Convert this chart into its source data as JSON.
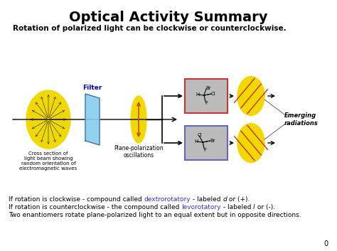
{
  "title": "Optical Activity Summary",
  "subtitle": "Rotation of polarized light can be clockwise or counterclockwise.",
  "bg_color": "#ffffff",
  "title_fontsize": 14,
  "subtitle_fontsize": 7.5,
  "bottom_lines": [
    {
      "parts": [
        {
          "text": "If rotation is clockwise - compound called ",
          "color": "#000000",
          "italic": false,
          "bold": false
        },
        {
          "text": "dextrorotatory",
          "color": "#3333cc",
          "italic": false,
          "bold": false
        },
        {
          "text": " - labeled ",
          "color": "#000000",
          "italic": false,
          "bold": false
        },
        {
          "text": "d",
          "color": "#000000",
          "italic": true,
          "bold": false
        },
        {
          "text": " or (+).",
          "color": "#000000",
          "italic": false,
          "bold": false
        }
      ]
    },
    {
      "parts": [
        {
          "text": "If rotation is counterclockwise - the compound called ",
          "color": "#000000",
          "italic": false,
          "bold": false
        },
        {
          "text": "levorotatory",
          "color": "#3333cc",
          "italic": false,
          "bold": false
        },
        {
          "text": " - labeled ",
          "color": "#000000",
          "italic": false,
          "bold": false
        },
        {
          "text": "l",
          "color": "#000000",
          "italic": true,
          "bold": false
        },
        {
          "text": " or (-).",
          "color": "#000000",
          "italic": false,
          "bold": false
        }
      ]
    },
    {
      "parts": [
        {
          "text": "Two enantiomers rotate plane-polarized light to an equal extent but in opposite directions.",
          "color": "#000000",
          "italic": false,
          "bold": false
        }
      ]
    }
  ],
  "label_cross_section": "Cross section of\nlight beam showing\nrandom orientation of\nelectromagnetic waves",
  "label_filter": "Filter",
  "label_plane_polar": "Plane-polarization\noscillations",
  "label_emerging": "Emerging\nradiations",
  "yellow": "#f0d800",
  "blue_filter": "#88ccee",
  "page_num": "0"
}
